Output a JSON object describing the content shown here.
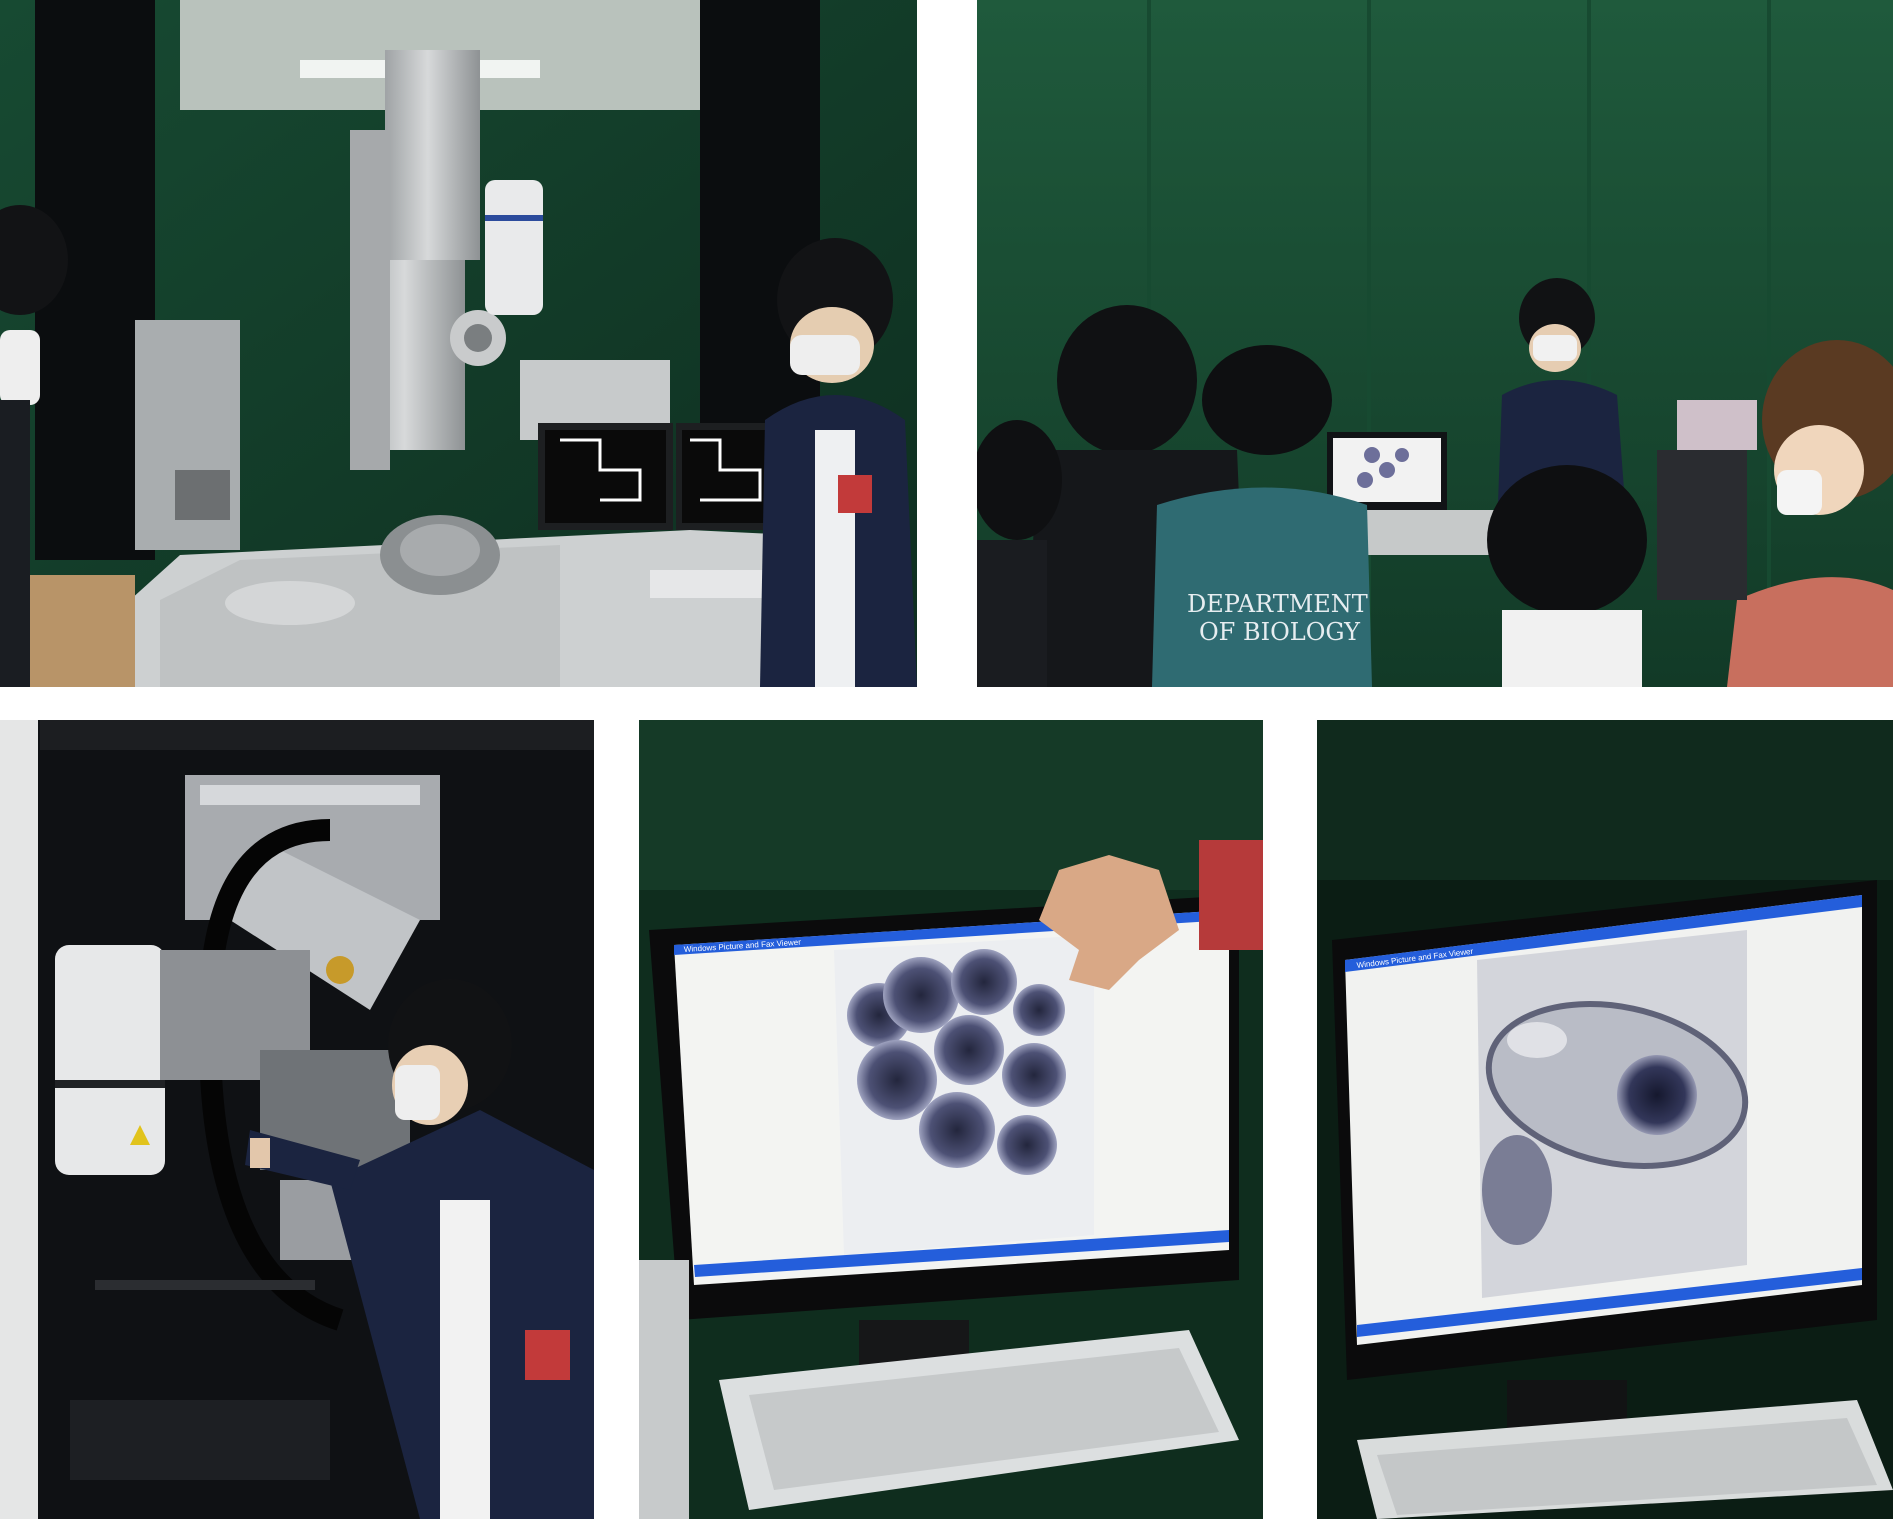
{
  "photos": [
    {
      "name": "microscope-lab-photo"
    },
    {
      "name": "students-viewing-monitor-photo",
      "shirt_text_line1": "DEPARTMENT",
      "shirt_text_line2": "OF BIOLOGY"
    },
    {
      "name": "cryo-instrument-photo"
    },
    {
      "name": "monitor-round-cells-photo",
      "window_title": "Windows Picture and Fax Viewer"
    },
    {
      "name": "monitor-bacterium-photo",
      "window_title": "Windows Picture and Fax Viewer"
    }
  ],
  "colors": {
    "lab_green": "#1f5a3c",
    "dark_green": "#0f2d1e",
    "instrument_gray": "#b9bcbd",
    "screen_white": "#f3f4f2",
    "xp_blue": "#245edb",
    "jacket_navy": "#1b2440"
  }
}
